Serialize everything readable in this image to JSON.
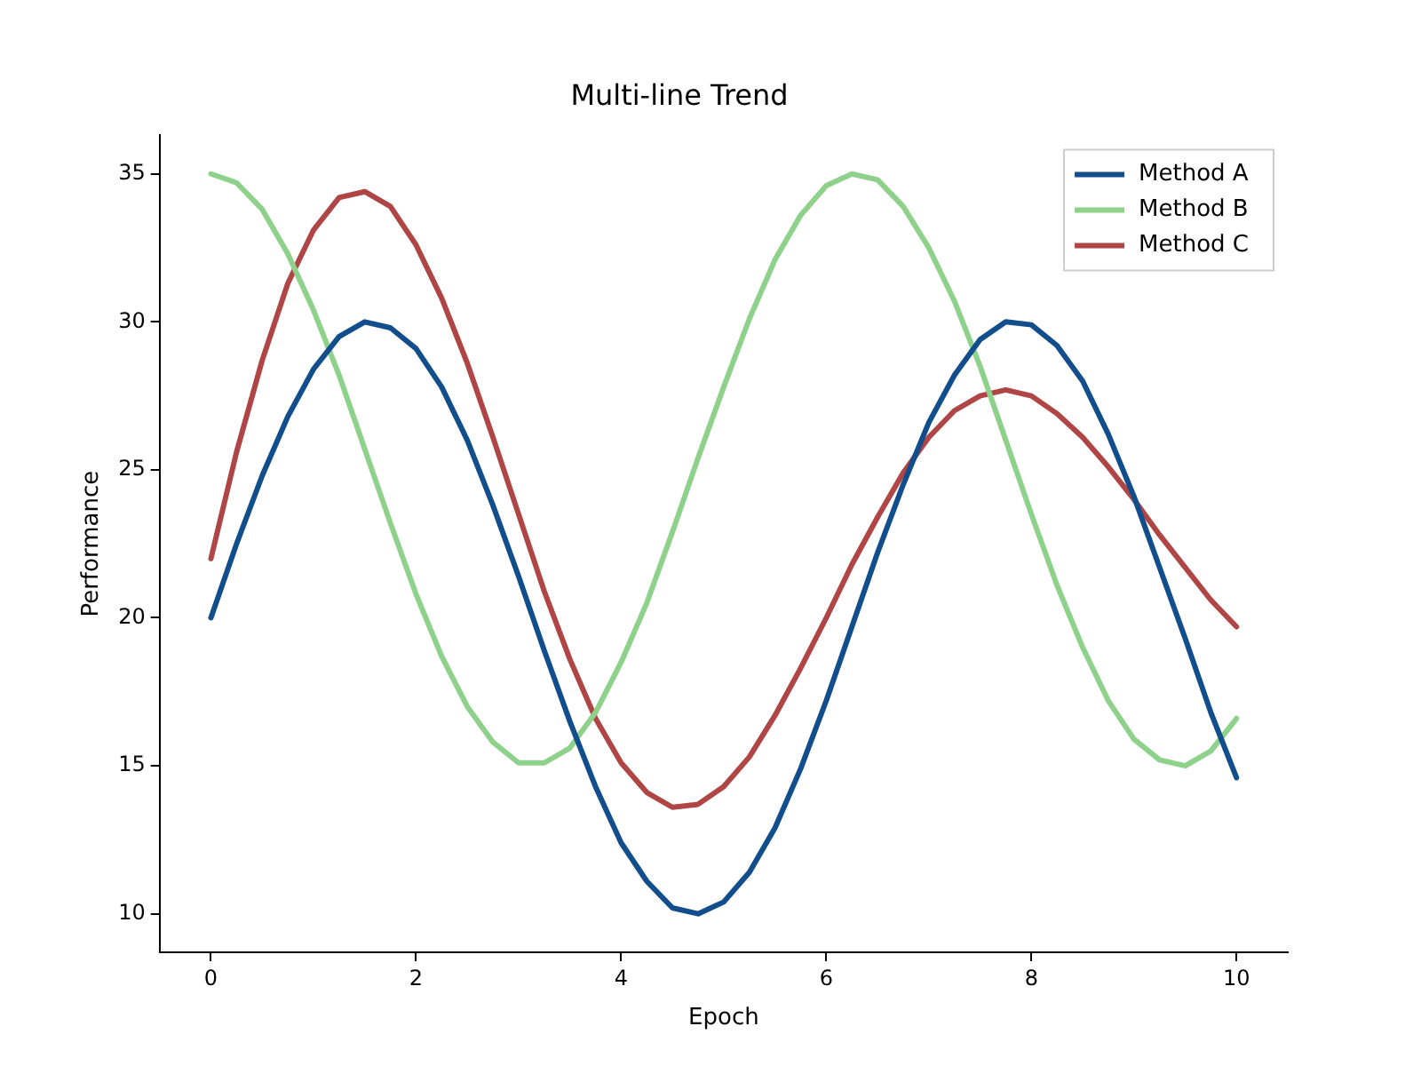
{
  "chart_data": {
    "type": "line",
    "title": "Multi-line Trend",
    "xlabel": "Epoch",
    "ylabel": "Performance",
    "x": [
      0,
      0.25,
      0.5,
      0.75,
      1,
      1.25,
      1.5,
      1.75,
      2,
      2.25,
      2.5,
      2.75,
      3,
      3.25,
      3.5,
      3.75,
      4,
      4.25,
      4.5,
      4.75,
      5,
      5.25,
      5.5,
      5.75,
      6,
      6.25,
      6.5,
      6.75,
      7,
      7.25,
      7.5,
      7.75,
      8,
      8.25,
      8.5,
      8.75,
      9,
      9.25,
      9.5,
      9.75,
      10
    ],
    "series": [
      {
        "name": "Method A",
        "color": "#124e8c",
        "values": [
          20,
          22.5,
          24.8,
          26.8,
          28.4,
          29.5,
          30,
          29.8,
          29.1,
          27.8,
          26,
          23.8,
          21.4,
          18.9,
          16.5,
          14.3,
          12.4,
          11.1,
          10.2,
          10,
          10.4,
          11.4,
          12.9,
          14.9,
          17.2,
          19.7,
          22.2,
          24.5,
          26.6,
          28.2,
          29.4,
          30,
          29.9,
          29.2,
          28,
          26.2,
          24.1,
          21.7,
          19.3,
          16.8,
          14.6
        ]
      },
      {
        "name": "Method B",
        "color": "#8ed18a",
        "values": [
          35,
          34.7,
          33.8,
          32.3,
          30.4,
          28.2,
          25.7,
          23.2,
          20.8,
          18.7,
          17,
          15.8,
          15.1,
          15.1,
          15.6,
          16.8,
          18.5,
          20.5,
          22.9,
          25.4,
          27.8,
          30.1,
          32.1,
          33.6,
          34.6,
          35,
          34.8,
          33.9,
          32.5,
          30.7,
          28.5,
          26,
          23.5,
          21.1,
          19,
          17.2,
          15.9,
          15.2,
          15,
          15.5,
          16.6
        ]
      },
      {
        "name": "Method C",
        "color": "#b04545",
        "values": [
          22,
          25.6,
          28.7,
          31.3,
          33.1,
          34.2,
          34.4,
          33.9,
          32.6,
          30.8,
          28.6,
          26.1,
          23.5,
          20.9,
          18.6,
          16.6,
          15.1,
          14.1,
          13.6,
          13.7,
          14.3,
          15.3,
          16.7,
          18.3,
          20,
          21.8,
          23.4,
          24.9,
          26.1,
          27,
          27.5,
          27.7,
          27.5,
          26.9,
          26.1,
          25.1,
          24,
          22.8,
          21.7,
          20.6,
          19.7
        ]
      }
    ],
    "xlim": [
      -0.5,
      10.5
    ],
    "xticks": [
      0,
      2,
      4,
      6,
      8,
      10
    ],
    "ylim": [
      8.7,
      36.3
    ],
    "yticks": [
      10,
      15,
      20,
      25,
      30,
      35
    ],
    "grid": false,
    "legend": "top right",
    "marker": "none",
    "line_style": "solid"
  }
}
